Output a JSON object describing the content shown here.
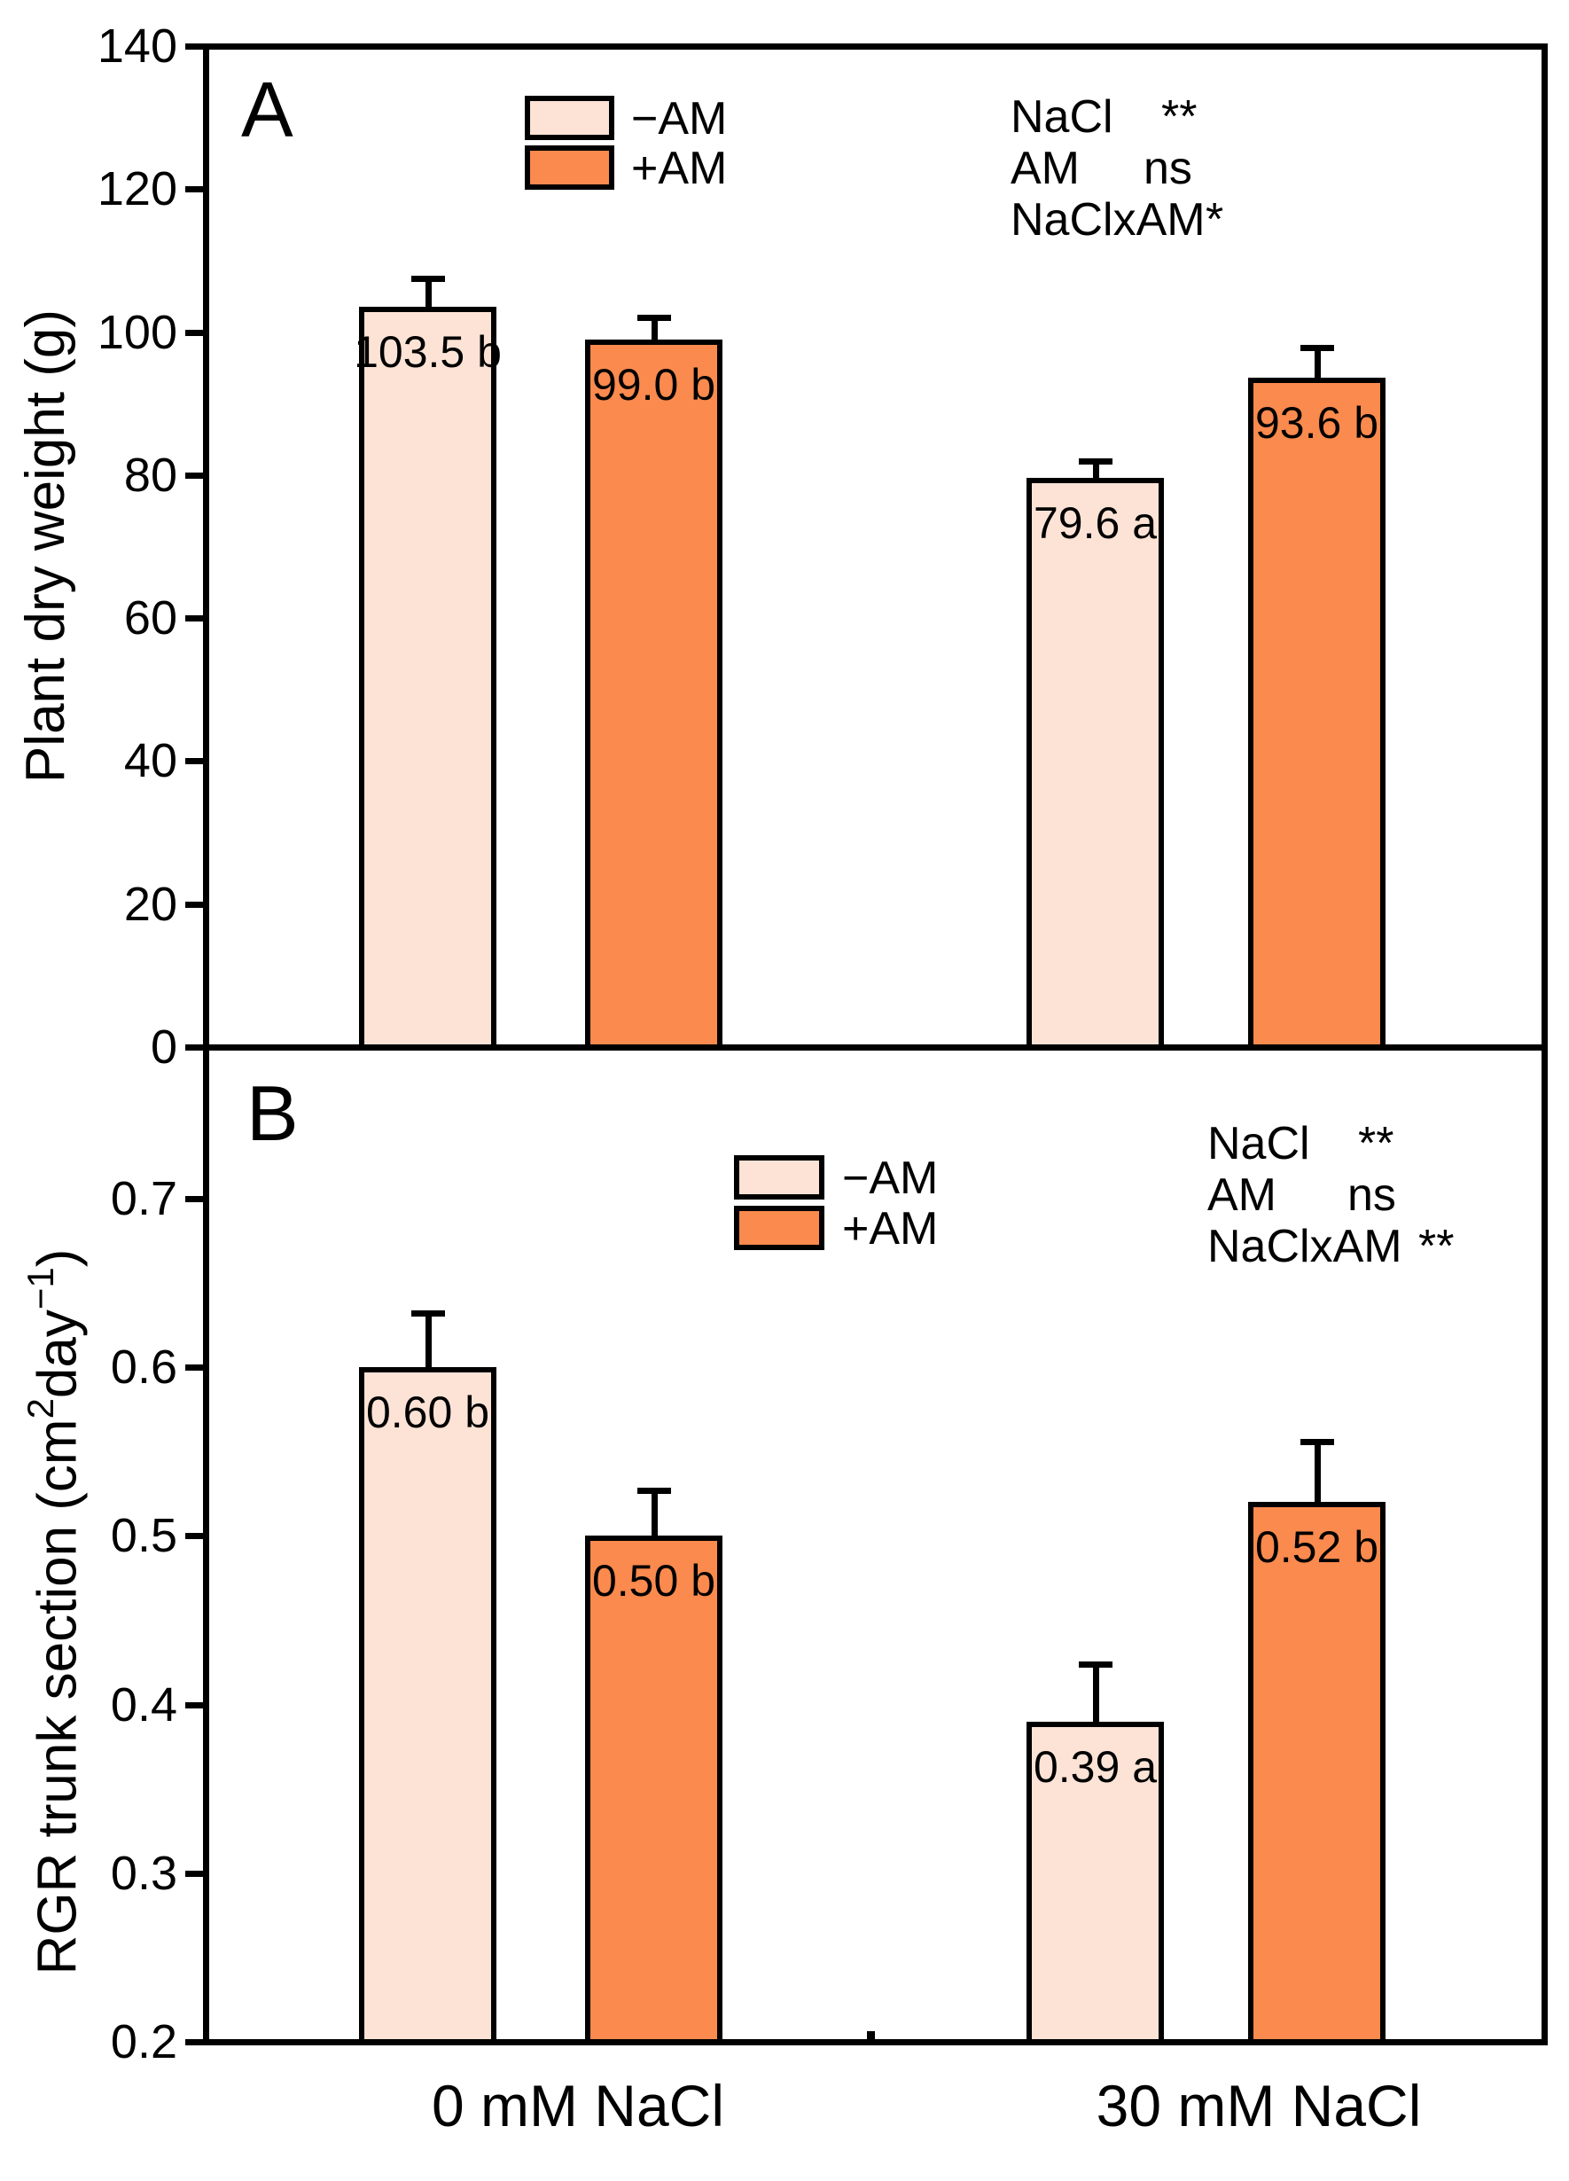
{
  "figure": {
    "x_category_labels": [
      "0 mM NaCl",
      "30 mM NaCl"
    ],
    "panels": [
      {
        "letter": "A",
        "ylabel": "Plant dry weight (g)",
        "legend": {
          "items": [
            {
              "label": "−AM",
              "series": "minus_am"
            },
            {
              "label": "+AM",
              "series": "plus_am"
            }
          ]
        },
        "stats": [
          {
            "factor": "NaCl",
            "sig": "**"
          },
          {
            "factor": "AM",
            "sig": "ns"
          },
          {
            "factor": "NaClxAM",
            "sig": "*"
          }
        ]
      },
      {
        "letter": "B",
        "ylabel": "RGR trunk section (cm2day−1)",
        "ylabel_parts": {
          "prefix": "RGR trunk section (cm",
          "sup_1": "2",
          "mid": "day",
          "sup_2": "−1",
          "suffix": ")"
        },
        "legend": {
          "items": [
            {
              "label": "−AM",
              "series": "minus_am"
            },
            {
              "label": "+AM",
              "series": "plus_am"
            }
          ]
        },
        "stats": [
          {
            "factor": "NaCl",
            "sig": "**"
          },
          {
            "factor": "AM",
            "sig": "ns"
          },
          {
            "factor": "NaClxAM",
            "sig": "**"
          }
        ]
      }
    ]
  },
  "colors": {
    "minus_am": "#FCE3D6",
    "plus_am": "#FA8A4D",
    "axis": "#000000"
  },
  "chart_data": [
    {
      "type": "bar",
      "panel": "A",
      "categories": [
        "0 mM NaCl",
        "30 mM NaCl"
      ],
      "series": [
        {
          "name": "−AM",
          "values": [
            103.5,
            79.6
          ],
          "errors_plus": [
            4.0,
            2.4
          ]
        },
        {
          "name": "+AM",
          "values": [
            99.0,
            93.6
          ],
          "errors_plus": [
            3.0,
            4.2
          ]
        }
      ],
      "bar_labels": [
        "103.5 b",
        "99.0 b",
        "79.6 a",
        "93.6 b"
      ],
      "ylabel": "Plant dry weight (g)",
      "ylim": [
        0,
        140
      ],
      "yticks": [
        0,
        20,
        40,
        60,
        80,
        100,
        120,
        140
      ],
      "ytick_labels": [
        "0",
        "20",
        "40",
        "60",
        "80",
        "100",
        "120",
        "140"
      ],
      "grid": false,
      "legend_position": "upper-left-inside",
      "annotations": [
        "NaCl **",
        "AM ns",
        "NaClxAM *"
      ]
    },
    {
      "type": "bar",
      "panel": "B",
      "categories": [
        "0 mM NaCl",
        "30 mM NaCl"
      ],
      "series": [
        {
          "name": "−AM",
          "values": [
            0.6,
            0.39
          ],
          "errors_plus": [
            0.032,
            0.034
          ]
        },
        {
          "name": "+AM",
          "values": [
            0.5,
            0.52
          ],
          "errors_plus": [
            0.027,
            0.036
          ]
        }
      ],
      "bar_labels": [
        "0.60 b",
        "0.50 b",
        "0.39 a",
        "0.52 b"
      ],
      "ylabel": "RGR trunk section (cm2day−1)",
      "ylim": [
        0.2,
        0.79
      ],
      "yticks": [
        0.2,
        0.3,
        0.4,
        0.5,
        0.6,
        0.7
      ],
      "ytick_labels": [
        "0.2",
        "0.3",
        "0.4",
        "0.5",
        "0.6",
        "0.7"
      ],
      "grid": false,
      "legend_position": "upper-middle-inside",
      "annotations": [
        "NaCl **",
        "AM ns",
        "NaClxAM **"
      ]
    }
  ]
}
